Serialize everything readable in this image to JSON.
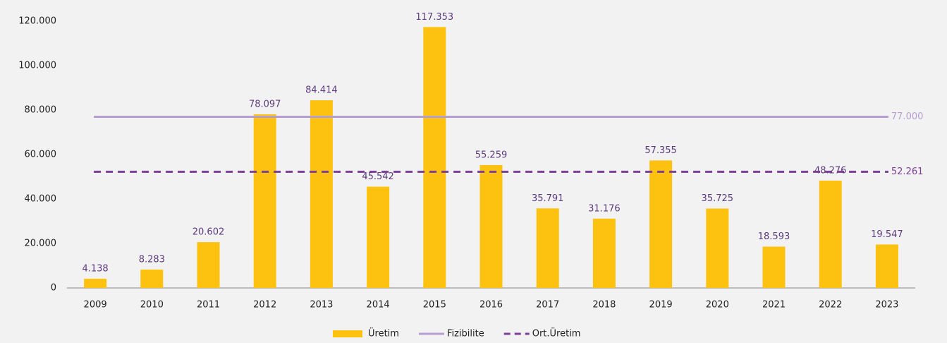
{
  "chart_data": {
    "type": "bar",
    "categories": [
      "2009",
      "2010",
      "2011",
      "2012",
      "2013",
      "2014",
      "2015",
      "2016",
      "2017",
      "2018",
      "2019",
      "2020",
      "2021",
      "2022",
      "2023"
    ],
    "series": [
      {
        "name": "Üretim",
        "color": "#fdc10f",
        "values": [
          4138,
          8283,
          20602,
          78097,
          84414,
          45542,
          117353,
          55259,
          35791,
          31176,
          57355,
          35725,
          18593,
          48276,
          19547
        ],
        "value_labels": [
          "4.138",
          "8.283",
          "20.602",
          "78.097",
          "84.414",
          "45.542",
          "117.353",
          "55.259",
          "35.791",
          "31.176",
          "57.355",
          "35.725",
          "18.593",
          "48.276",
          "19.547"
        ]
      },
      {
        "name": "Fizibilite",
        "color": "#b59ed2",
        "line": "solid",
        "value": 77000,
        "value_label": "77.000"
      },
      {
        "name": "Ort.Üretim",
        "color": "#7e3f98",
        "line": "dashed",
        "value": 52261,
        "value_label": "52.261"
      }
    ],
    "ylim": [
      0,
      120000
    ],
    "yticks": [
      0,
      {
        "value": 20000,
        "label": "20.000"
      },
      {
        "value": 40000,
        "label": "40.000"
      },
      {
        "value": 60000,
        "label": "60.000"
      },
      {
        "value": 80000,
        "label": "80.000"
      },
      {
        "value": 100000,
        "label": "100.000"
      },
      {
        "value": 120000,
        "label": "120.000"
      }
    ],
    "grid": false,
    "legend": "bottom"
  }
}
